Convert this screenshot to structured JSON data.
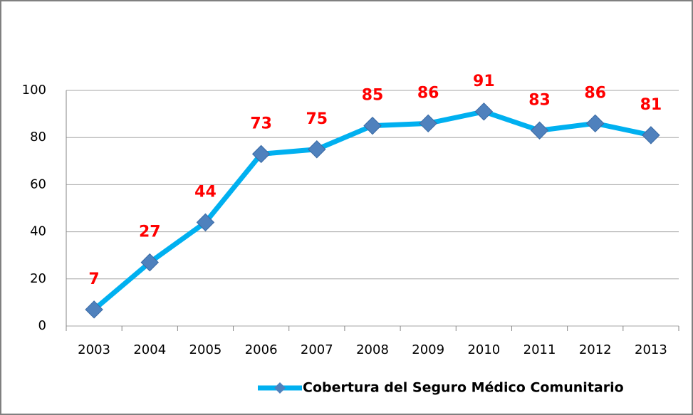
{
  "chart_data": {
    "type": "line",
    "categories": [
      "2003",
      "2004",
      "2005",
      "2006",
      "2007",
      "2008",
      "2009",
      "2010",
      "2011",
      "2012",
      "2013"
    ],
    "series": [
      {
        "name": "Cobertura del Seguro Médico Comunitario",
        "color": "#00b0f0",
        "marker_color": "#4f81bd",
        "values": [
          7,
          27,
          44,
          73,
          75,
          85,
          86,
          91,
          83,
          86,
          81
        ]
      }
    ],
    "label_color": "#ff0000",
    "ylim": [
      0,
      100
    ],
    "yticks": [
      0,
      20,
      40,
      60,
      80,
      100
    ],
    "grid": true,
    "legend": "bottom"
  }
}
